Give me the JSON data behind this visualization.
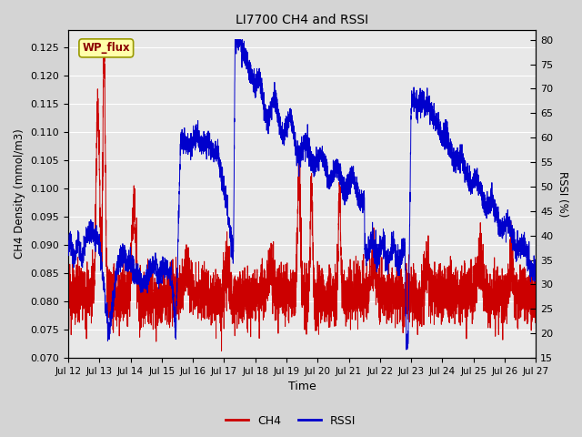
{
  "title": "LI7700 CH4 and RSSI",
  "xlabel": "Time",
  "ylabel_left": "CH4 Density (mmol/m3)",
  "ylabel_right": "RSSI (%)",
  "annotation": "WP_flux",
  "ylim_left": [
    0.07,
    0.128
  ],
  "ylim_right": [
    15,
    82
  ],
  "yticks_left": [
    0.07,
    0.075,
    0.08,
    0.085,
    0.09,
    0.095,
    0.1,
    0.105,
    0.11,
    0.115,
    0.12,
    0.125
  ],
  "yticks_right": [
    15,
    20,
    25,
    30,
    35,
    40,
    45,
    50,
    55,
    60,
    65,
    70,
    75,
    80
  ],
  "ch4_color": "#cc0000",
  "rssi_color": "#0000cc",
  "plot_bg_color": "#e8e8e8",
  "grid_color": "#ffffff",
  "n_points": 5000,
  "figsize": [
    6.4,
    4.8
  ],
  "dpi": 100,
  "annotation_color": "#8B0000",
  "annotation_bg": "#ffffaa",
  "annotation_edge": "#999900"
}
